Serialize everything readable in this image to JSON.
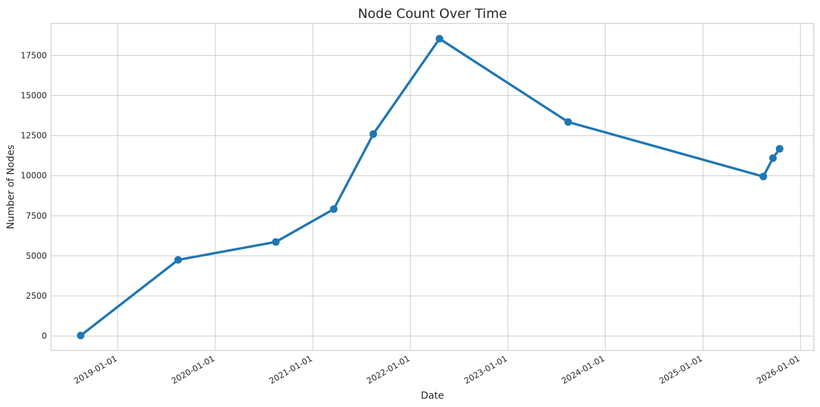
{
  "chart_data": {
    "type": "line",
    "title": "Node Count Over Time",
    "xlabel": "Date",
    "ylabel": "Number of Nodes",
    "x_scale": "date",
    "xlim": [
      "2018-04-26",
      "2026-02-20"
    ],
    "ylim": [
      -900,
      19500
    ],
    "x_ticks": [
      "2019-01-01",
      "2020-01-01",
      "2021-01-01",
      "2022-01-01",
      "2023-01-01",
      "2024-01-01",
      "2025-01-01",
      "2026-01-01"
    ],
    "y_ticks": [
      0,
      2500,
      5000,
      7500,
      10000,
      12500,
      15000,
      17500
    ],
    "grid": true,
    "series": [
      {
        "color": "#1f77b4",
        "points": [
          {
            "x": "2018-08-15",
            "y": 30
          },
          {
            "x": "2019-08-15",
            "y": 4750
          },
          {
            "x": "2020-08-15",
            "y": 5870
          },
          {
            "x": "2021-03-20",
            "y": 7920
          },
          {
            "x": "2021-08-15",
            "y": 12600
          },
          {
            "x": "2022-04-20",
            "y": 18550
          },
          {
            "x": "2023-08-15",
            "y": 13350
          },
          {
            "x": "2025-08-15",
            "y": 9950
          },
          {
            "x": "2025-09-20",
            "y": 11100
          },
          {
            "x": "2025-10-15",
            "y": 11680
          }
        ]
      }
    ]
  }
}
